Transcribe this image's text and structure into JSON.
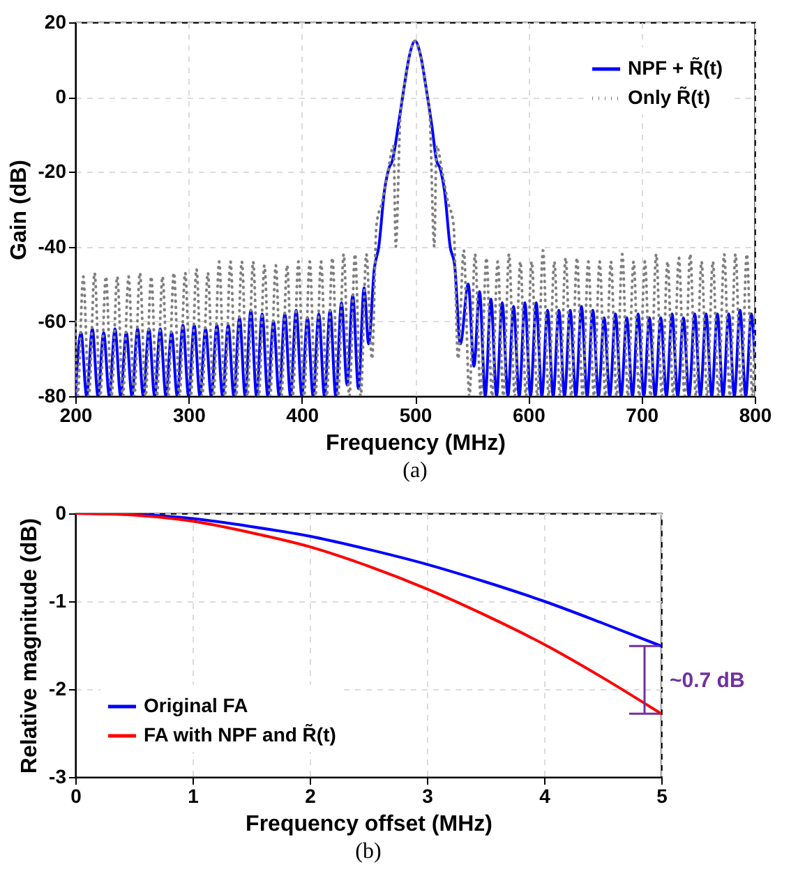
{
  "chart_data": [
    {
      "type": "line",
      "title": "(a)",
      "xlabel": "Frequency (MHz)",
      "ylabel": "Gain (dB)",
      "xlim": [
        200,
        800
      ],
      "ylim": [
        -80,
        20
      ],
      "xticks": [
        200,
        300,
        400,
        500,
        600,
        700,
        800
      ],
      "yticks": [
        -80,
        -60,
        -40,
        -20,
        0,
        20
      ],
      "grid": true,
      "legend": "top right",
      "series": [
        {
          "name": "NPF + R̃(t)",
          "color": "#0000ff",
          "line_style": "solid",
          "x": [
            200,
            205,
            210,
            215,
            220,
            225,
            230,
            235,
            240,
            245,
            250,
            255,
            260,
            265,
            270,
            275,
            280,
            285,
            290,
            295,
            300,
            305,
            310,
            315,
            320,
            325,
            330,
            335,
            340,
            345,
            350,
            355,
            360,
            365,
            370,
            375,
            380,
            385,
            390,
            395,
            400,
            405,
            410,
            415,
            420,
            425,
            430,
            435,
            440,
            445,
            450,
            455,
            459,
            464,
            468,
            473,
            477,
            480,
            485,
            490,
            495,
            500,
            505,
            510,
            515,
            519,
            522,
            526,
            531,
            535,
            540,
            547,
            552,
            557,
            562,
            567,
            572,
            577,
            582,
            587,
            592,
            597,
            602,
            607,
            612,
            617,
            622,
            627,
            632,
            637,
            642,
            647,
            652,
            657,
            662,
            667,
            672,
            677,
            682,
            687,
            692,
            697,
            702,
            707,
            712,
            717,
            722,
            727,
            732,
            737,
            742,
            747,
            752,
            757,
            762,
            767,
            772,
            777,
            782,
            787,
            792,
            797,
            800
          ],
          "values": [
            -80,
            -63,
            -80,
            -62,
            -80,
            -63,
            -80,
            -62,
            -80,
            -63,
            -80,
            -62,
            -80,
            -62,
            -80,
            -62,
            -80,
            -63,
            -80,
            -61,
            -80,
            -61,
            -80,
            -62,
            -80,
            -61,
            -80,
            -61,
            -80,
            -59,
            -80,
            -57,
            -80,
            -58,
            -80,
            -60,
            -80,
            -58,
            -80,
            -57,
            -80,
            -59,
            -80,
            -58,
            -80,
            -57,
            -80,
            -55,
            -77,
            -53,
            -78,
            -51,
            -66,
            -46,
            -40,
            -25,
            -19,
            -17,
            -8,
            2,
            11,
            15,
            11,
            2,
            -8,
            -17,
            -19,
            -25,
            -40,
            -45,
            -66,
            -50,
            -72,
            -52,
            -80,
            -54,
            -80,
            -55,
            -80,
            -56,
            -80,
            -55,
            -80,
            -55,
            -80,
            -57,
            -80,
            -57,
            -80,
            -57,
            -80,
            -56,
            -80,
            -57,
            -80,
            -59,
            -80,
            -58,
            -80,
            -59,
            -80,
            -58,
            -80,
            -59,
            -80,
            -59,
            -80,
            -58,
            -80,
            -59,
            -80,
            -58,
            -80,
            -58,
            -80,
            -58,
            -80,
            -58,
            -80,
            -57,
            -80,
            -58,
            -70
          ]
        },
        {
          "name": "Only R̃(t)",
          "color": "#808080",
          "line_style": "dotted",
          "x": [
            200,
            202,
            207,
            212,
            217,
            222,
            227,
            232,
            237,
            242,
            247,
            252,
            257,
            262,
            267,
            272,
            277,
            282,
            287,
            292,
            297,
            302,
            307,
            312,
            317,
            322,
            327,
            332,
            337,
            342,
            347,
            352,
            357,
            362,
            367,
            372,
            377,
            382,
            387,
            392,
            397,
            402,
            407,
            412,
            417,
            422,
            427,
            432,
            437,
            442,
            447,
            452,
            457,
            462,
            466,
            471,
            476,
            481,
            483,
            487,
            490,
            495,
            500,
            505,
            510,
            513,
            517,
            519,
            524,
            529,
            534,
            538,
            543,
            548,
            553,
            558,
            563,
            568,
            573,
            578,
            583,
            588,
            593,
            598,
            603,
            608,
            613,
            618,
            623,
            628,
            633,
            638,
            643,
            648,
            653,
            658,
            663,
            668,
            673,
            678,
            683,
            688,
            693,
            698,
            703,
            708,
            713,
            718,
            723,
            728,
            733,
            738,
            743,
            748,
            753,
            758,
            763,
            768,
            773,
            778,
            783,
            788,
            793,
            798,
            800
          ],
          "values": [
            -60,
            -80,
            -48,
            -80,
            -47,
            -80,
            -48,
            -80,
            -48,
            -80,
            -48,
            -80,
            -47,
            -80,
            -48,
            -80,
            -48,
            -80,
            -47,
            -80,
            -47,
            -80,
            -46,
            -80,
            -47,
            -80,
            -44,
            -80,
            -44,
            -80,
            -44,
            -80,
            -44,
            -80,
            -45,
            -80,
            -45,
            -80,
            -45,
            -80,
            -44,
            -80,
            -44,
            -80,
            -44,
            -80,
            -43,
            -80,
            -42,
            -80,
            -42,
            -80,
            -42,
            -70,
            -34,
            -28,
            -20,
            -13,
            -40,
            -5,
            2,
            11,
            15,
            11,
            2,
            -5,
            -40,
            -13,
            -20,
            -28,
            -34,
            -70,
            -41,
            -80,
            -42,
            -80,
            -43,
            -80,
            -44,
            -80,
            -42,
            -80,
            -44,
            -80,
            -44,
            -80,
            -41,
            -80,
            -44,
            -80,
            -43,
            -80,
            -43,
            -80,
            -44,
            -80,
            -44,
            -80,
            -44,
            -80,
            -42,
            -80,
            -44,
            -80,
            -44,
            -80,
            -42,
            -80,
            -44,
            -80,
            -43,
            -80,
            -42,
            -80,
            -44,
            -80,
            -44,
            -80,
            -42,
            -80,
            -42,
            -80,
            -42,
            -80,
            -60
          ]
        }
      ]
    },
    {
      "type": "line",
      "title": "(b)",
      "xlabel": "Frequency offset (MHz)",
      "ylabel": "Relative magnitude (dB)",
      "xlim": [
        0,
        5
      ],
      "ylim": [
        -3,
        0
      ],
      "xticks": [
        0,
        1,
        2,
        3,
        4,
        5
      ],
      "yticks": [
        -3,
        -2,
        -1,
        0
      ],
      "grid": true,
      "legend": "bottom left",
      "annotations": [
        "~0.7 dB"
      ],
      "x": [
        0,
        0.5,
        1,
        1.5,
        2,
        2.5,
        3,
        3.5,
        4,
        4.5,
        5
      ],
      "series": [
        {
          "name": "Original FA",
          "color": "#0000ff",
          "line_style": "solid",
          "values": [
            0,
            -0.01,
            -0.06,
            -0.15,
            -0.26,
            -0.41,
            -0.58,
            -0.78,
            -1.0,
            -1.25,
            -1.51
          ]
        },
        {
          "name": "FA with NPF and R̃(t)",
          "color": "#ff0000",
          "line_style": "solid",
          "values": [
            0,
            -0.02,
            -0.09,
            -0.22,
            -0.38,
            -0.6,
            -0.86,
            -1.16,
            -1.49,
            -1.87,
            -2.28
          ]
        }
      ]
    }
  ]
}
